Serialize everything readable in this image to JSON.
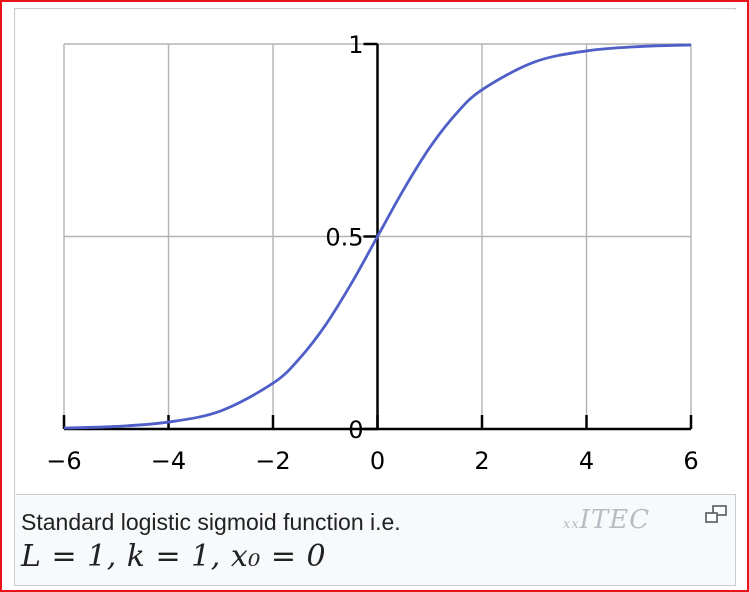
{
  "figure": {
    "caption_text": "Standard logistic sigmoid function i.e.",
    "formula_text": "L = 1, k = 1, x₀ = 0",
    "watermark": {
      "prefix": "xx",
      "text": "ITEC"
    },
    "enlarge_icon": "enlarge-icon"
  },
  "colors": {
    "curve": "#4f5fc8",
    "grid": "#b3b3b3",
    "axis": "#000000",
    "border_highlight": "#e8141a"
  },
  "chart_data": {
    "type": "line",
    "title": "",
    "xlabel": "",
    "ylabel": "",
    "xlim": [
      -6,
      6
    ],
    "ylim": [
      0,
      1
    ],
    "x_ticks": [
      "−6",
      "−4",
      "−2",
      "0",
      "2",
      "4",
      "6"
    ],
    "x_tick_values": [
      -6,
      -4,
      -2,
      0,
      2,
      4,
      6
    ],
    "y_ticks": [
      "0",
      "0.5",
      "1"
    ],
    "y_tick_values": [
      0,
      0.5,
      1
    ],
    "grid": true,
    "series": [
      {
        "x": [
          -6,
          -5,
          -4,
          -3,
          -2,
          -1.5,
          -1,
          -0.5,
          0,
          0.5,
          1,
          1.5,
          2,
          3,
          4,
          5,
          6
        ],
        "y": [
          0.0025,
          0.0067,
          0.018,
          0.047,
          0.119,
          0.182,
          0.269,
          0.378,
          0.5,
          0.622,
          0.731,
          0.818,
          0.881,
          0.953,
          0.982,
          0.9933,
          0.9975
        ]
      }
    ]
  }
}
